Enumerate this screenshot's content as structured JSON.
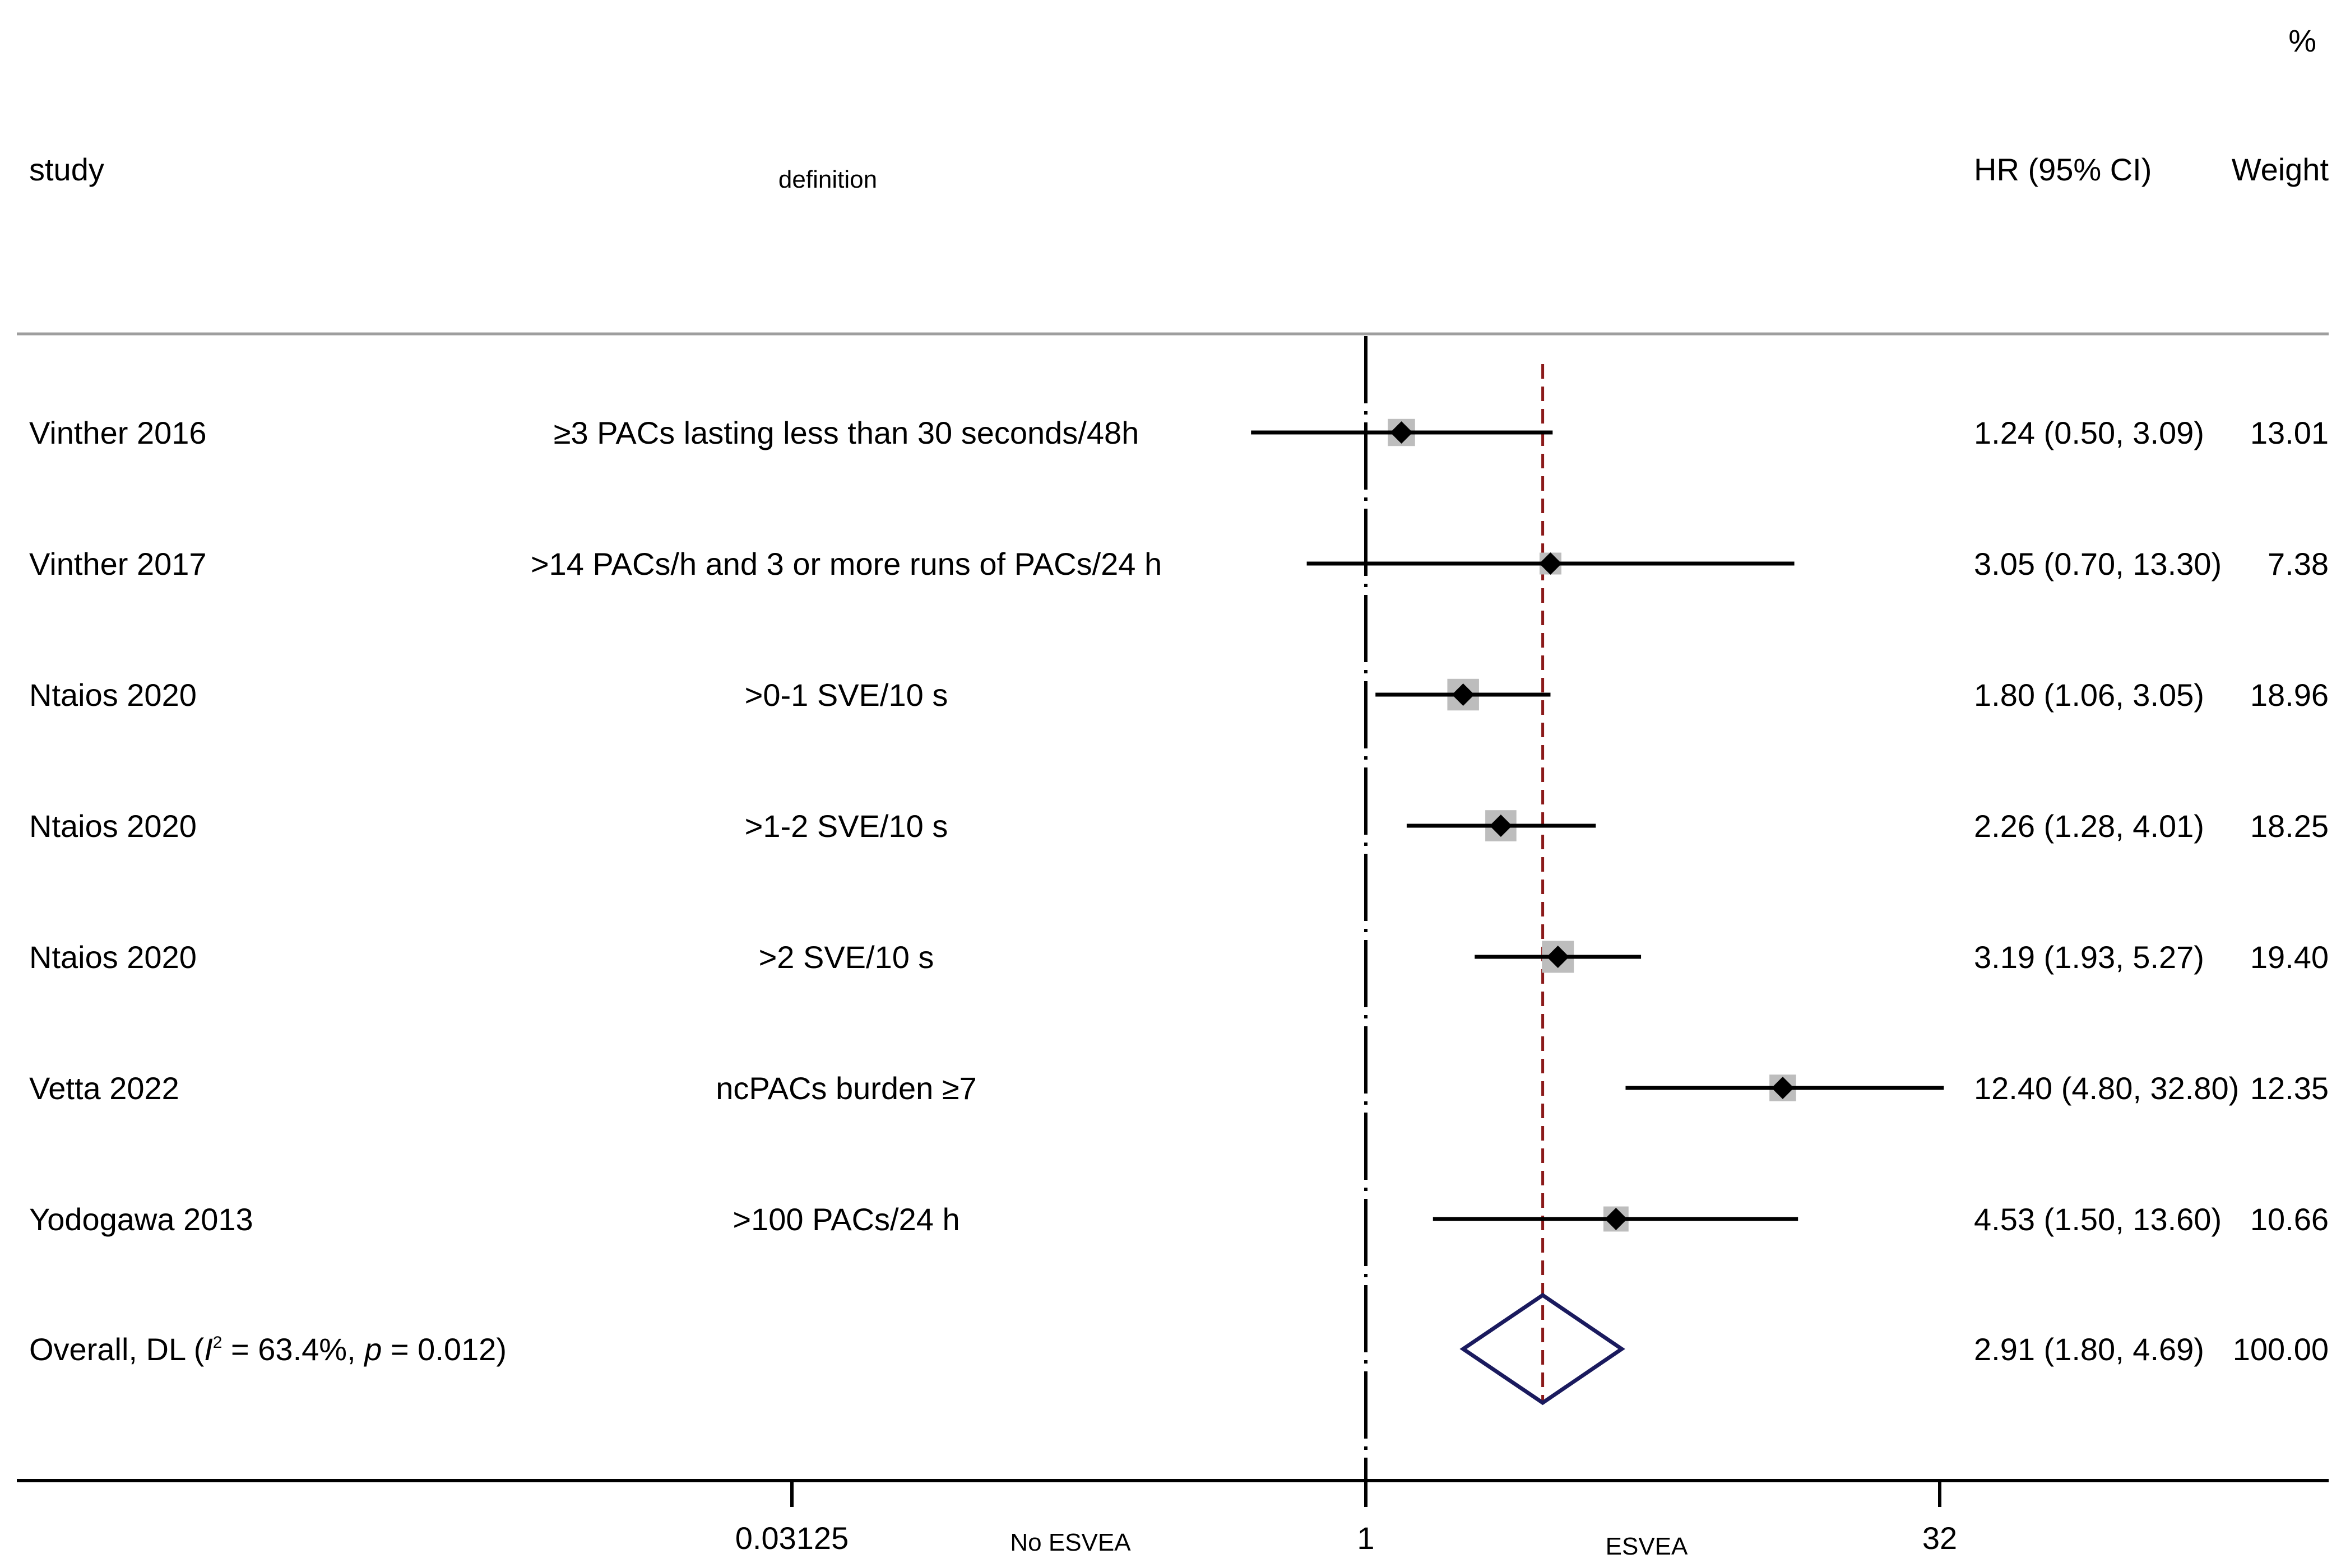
{
  "chart_data": {
    "type": "forest",
    "x_scale": "log2",
    "xlim": [
      0.03125,
      32
    ],
    "reference_line": 1,
    "summary_line": 2.91,
    "headers": {
      "study": "study",
      "definition": "definition",
      "effect": "HR (95% CI)",
      "weight_unit": "%",
      "weight": "Weight"
    },
    "x_ticks": [
      {
        "value": 0.03125,
        "label": "0.03125"
      },
      {
        "value": 1,
        "label": "1"
      },
      {
        "value": 32,
        "label": "32"
      }
    ],
    "direction_labels": {
      "left": "No ESVEA",
      "right": "ESVEA"
    },
    "studies": [
      {
        "study": "Vinther 2016",
        "definition": "≥3 PACs lasting less than 30 seconds/48h",
        "hr": 1.24,
        "lower": 0.5,
        "upper": 3.09,
        "ci_text": "1.24 (0.50, 3.09)",
        "weight": 13.01,
        "weight_text": "13.01"
      },
      {
        "study": "Vinther 2017",
        "definition": ">14 PACs/h and 3 or more runs of PACs/24 h",
        "hr": 3.05,
        "lower": 0.7,
        "upper": 13.3,
        "ci_text": "3.05 (0.70, 13.30)",
        "weight": 7.38,
        "weight_text": "7.38"
      },
      {
        "study": "Ntaios 2020",
        "definition": ">0-1 SVE/10 s",
        "hr": 1.8,
        "lower": 1.06,
        "upper": 3.05,
        "ci_text": "1.80 (1.06, 3.05)",
        "weight": 18.96,
        "weight_text": "18.96"
      },
      {
        "study": "Ntaios 2020",
        "definition": ">1-2 SVE/10 s",
        "hr": 2.26,
        "lower": 1.28,
        "upper": 4.01,
        "ci_text": "2.26 (1.28, 4.01)",
        "weight": 18.25,
        "weight_text": "18.25"
      },
      {
        "study": "Ntaios 2020",
        "definition": ">2 SVE/10 s",
        "hr": 3.19,
        "lower": 1.93,
        "upper": 5.27,
        "ci_text": "3.19 (1.93, 5.27)",
        "weight": 19.4,
        "weight_text": "19.40"
      },
      {
        "study": "Vetta 2022",
        "definition": "ncPACs burden ≥7",
        "hr": 12.4,
        "lower": 4.8,
        "upper": 32.8,
        "ci_text": "12.40 (4.80, 32.80)",
        "weight": 12.35,
        "weight_text": "12.35"
      },
      {
        "study": "Yodogawa 2013",
        "definition": ">100 PACs/24 h",
        "hr": 4.53,
        "lower": 1.5,
        "upper": 13.6,
        "ci_text": "4.53 (1.50, 13.60)",
        "weight": 10.66,
        "weight_text": "10.66"
      }
    ],
    "overall": {
      "label_prefix": "Overall, DL (",
      "i2_symbol": "I",
      "i2_sup": "2",
      "i2_text": " = 63.4%, ",
      "p_symbol": "p",
      "p_text": " = 0.012)",
      "hr": 2.91,
      "lower": 1.8,
      "upper": 4.69,
      "ci_text": "2.91 (1.80, 4.69)",
      "weight_text": "100.00"
    },
    "colors": {
      "ci_line": "#000000",
      "marker": "#000000",
      "weight_box": "#bdbdbd",
      "summary_line": "#8b1a1a",
      "diamond": "#1a1a5e",
      "axis": "#000000",
      "header_rule": "#9e9e9e"
    }
  }
}
